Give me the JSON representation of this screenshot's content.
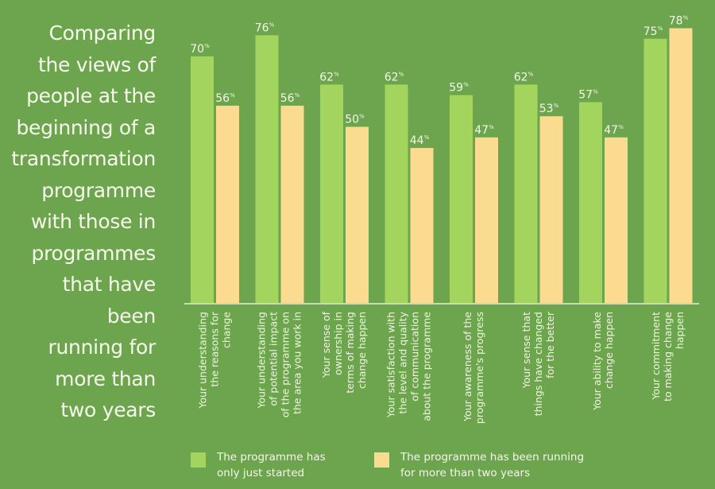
{
  "title": "Comparing the views of people at the beginning of a transformation programme with those in programmes that have been running for more than two years",
  "title_lines": [
    "Comparing",
    "the views of",
    "people at the",
    "beginning of a",
    "transformation",
    "programme",
    "with those in",
    "programmes",
    "that have been",
    "running for",
    "more than",
    "two years"
  ],
  "colors": {
    "background": "#6ca54d",
    "started": "#a2d45e",
    "running": "#fbdb8f",
    "axis": "#e8f0d8"
  },
  "chart_data": {
    "type": "bar",
    "title": "Comparing the views of people at the beginning of a transformation programme with those in programmes that have been running for more than two years",
    "xlabel": "",
    "ylabel": "",
    "ylim": [
      0,
      85
    ],
    "grid": false,
    "value_suffix": "%",
    "categories": [
      [
        "Your understanding",
        "the reasons for",
        "change"
      ],
      [
        "Your understanding",
        "of potential impact",
        "of the programme on",
        "the area you work in"
      ],
      [
        "Your sense of",
        "ownership in",
        "terms of making",
        "change happen"
      ],
      [
        "Your satisfaction with",
        "the level and quality",
        "of communication",
        "about the programme"
      ],
      [
        "Your awareness of the",
        "programme's progress"
      ],
      [
        "Your sense that",
        "things have changed",
        "for the better"
      ],
      [
        "Your ability to make",
        "change happen"
      ],
      [
        "Your commitment",
        "to making change",
        "happen"
      ]
    ],
    "series": [
      {
        "name": "The programme has only just started",
        "values": [
          70,
          76,
          62,
          62,
          59,
          62,
          57,
          75
        ]
      },
      {
        "name": "The programme has been running for more than two years",
        "values": [
          56,
          56,
          50,
          44,
          47,
          53,
          47,
          78
        ]
      }
    ],
    "legend_position": "bottom"
  },
  "legend": [
    {
      "label": "The programme has\nonly just started"
    },
    {
      "label": "The programme has been running\nfor more than two years"
    }
  ]
}
